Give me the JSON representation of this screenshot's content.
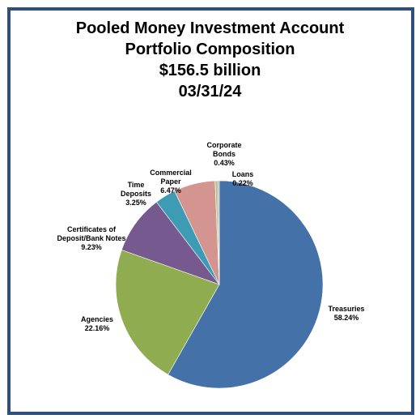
{
  "chart_data": {
    "type": "pie",
    "title": "Pooled Money Investment Account",
    "subtitle": [
      "Portfolio Composition",
      "$156.5 billion",
      "03/31/24"
    ],
    "slices": [
      {
        "name": "Treasuries",
        "value": 58.24,
        "label_lines": [
          "Treasuries"
        ],
        "pct_label": "58.24%",
        "color": "#4472a8"
      },
      {
        "name": "Agencies",
        "value": 22.16,
        "label_lines": [
          "Agencies"
        ],
        "pct_label": "22.16%",
        "color": "#8fac50"
      },
      {
        "name": "Certificates of Deposit/Bank Notes",
        "value": 9.23,
        "label_lines": [
          "Certificates of",
          "Deposit/Bank Notes"
        ],
        "pct_label": "9.23%",
        "color": "#75598f"
      },
      {
        "name": "Time Deposits",
        "value": 3.25,
        "label_lines": [
          "Time",
          "Deposits"
        ],
        "pct_label": "3.25%",
        "color": "#3d9bb3"
      },
      {
        "name": "Commercial Paper",
        "value": 6.47,
        "label_lines": [
          "Commercial",
          "Paper"
        ],
        "pct_label": "6.47%",
        "color": "#d49590"
      },
      {
        "name": "Corporate Bonds",
        "value": 0.43,
        "label_lines": [
          "Corporate",
          "Bonds"
        ],
        "pct_label": "0.43%",
        "color": "#b6c58e"
      },
      {
        "name": "Loans",
        "value": 0.22,
        "label_lines": [
          "Loans"
        ],
        "pct_label": "0.22%",
        "color": "#a99bbd"
      }
    ],
    "legend": "none"
  }
}
